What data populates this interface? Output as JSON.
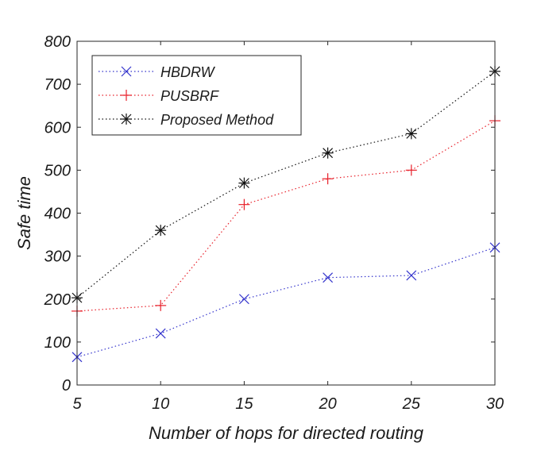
{
  "chart_data": {
    "type": "line",
    "title": "",
    "xlabel": "Number of hops for directed routing",
    "ylabel": "Safe time",
    "x": [
      5,
      10,
      15,
      20,
      25,
      30
    ],
    "xlim": [
      5,
      30
    ],
    "ylim": [
      0,
      800
    ],
    "xticks": [
      "5",
      "10",
      "15",
      "20",
      "25",
      "30"
    ],
    "yticks": [
      "0",
      "100",
      "200",
      "300",
      "400",
      "500",
      "600",
      "700",
      "800"
    ],
    "grid": false,
    "legend_position": "top-left",
    "series": [
      {
        "name": "HBDRW",
        "values": [
          65,
          120,
          200,
          250,
          255,
          320
        ],
        "color": "#3333cc",
        "marker": "x"
      },
      {
        "name": "PUSBRF",
        "values": [
          172,
          185,
          420,
          480,
          500,
          615
        ],
        "color": "#e8202a",
        "marker": "plus"
      },
      {
        "name": "Proposed Method",
        "values": [
          203,
          360,
          470,
          540,
          585,
          730
        ],
        "color": "#111111",
        "marker": "asterisk"
      }
    ]
  }
}
